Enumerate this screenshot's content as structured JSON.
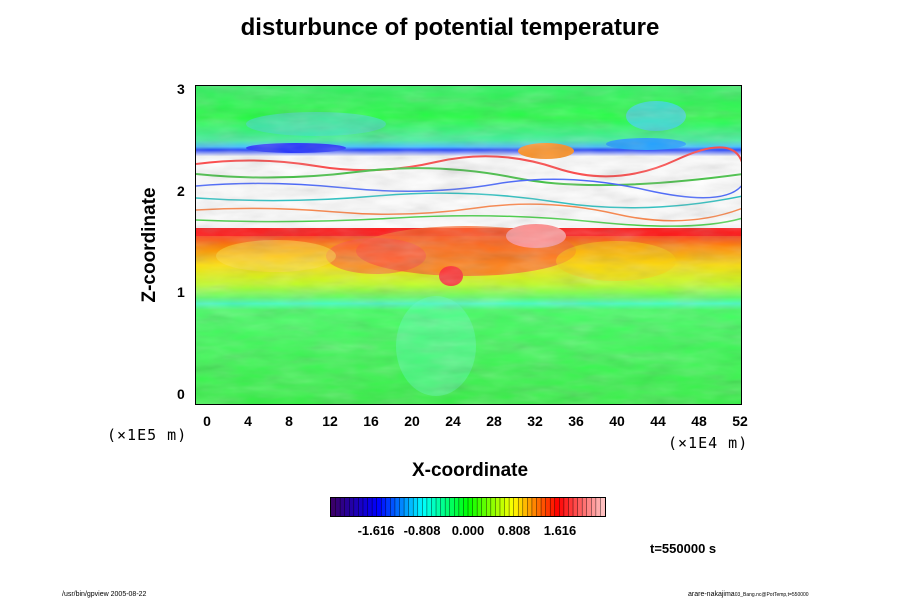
{
  "chart_data": {
    "type": "heatmap",
    "title": "disturbunce of potential temperature",
    "xlabel": "X-coordinate",
    "ylabel": "Z-coordinate",
    "x_ticks": [
      "0",
      "4",
      "8",
      "12",
      "16",
      "20",
      "24",
      "28",
      "32",
      "36",
      "40",
      "44",
      "48",
      "52"
    ],
    "y_ticks": [
      "0",
      "1",
      "2",
      "3"
    ],
    "x_unit": "(×1E4 m)",
    "y_unit": "(×1E5 m)",
    "xlim": [
      0,
      52
    ],
    "ylim": [
      -0.1,
      3.05
    ],
    "colorbar_ticks": [
      "-1.616",
      "-0.808",
      "0.000",
      "0.808",
      "1.616"
    ],
    "colorbar_range": [
      -2.424,
      2.424
    ],
    "colormap": [
      "#3a006a",
      "#0000ff",
      "#00ffff",
      "#00ff00",
      "#ffff00",
      "#ff0000",
      "#ffc0c0"
    ]
  },
  "annotations": {
    "time": "t=550000 s",
    "footer_left": "/usr/bin/gpview 2005-08-22",
    "footer_right": "arare-nakajima",
    "footer_right_small": "03_Bang.nc@PotTemp,t=550000"
  }
}
